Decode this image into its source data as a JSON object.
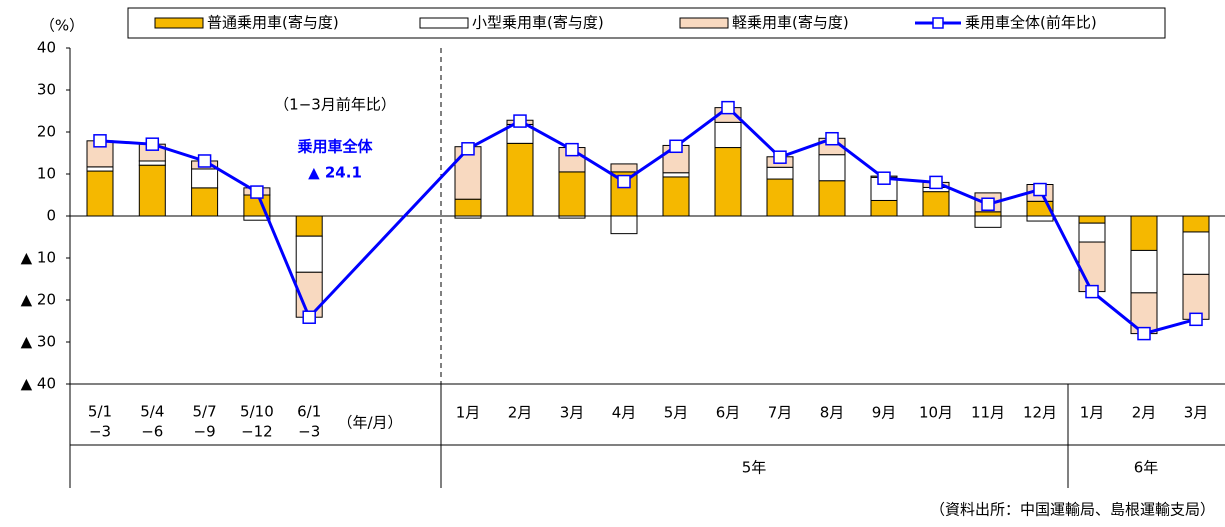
{
  "chart_data": {
    "type": "bar",
    "y_unit": "（%）",
    "x_unit_label": "（年/月）",
    "categories": [
      [
        "5/1",
        "−3"
      ],
      [
        "5/4",
        "−6"
      ],
      [
        "5/7",
        "−9"
      ],
      [
        "5/10",
        "−12"
      ],
      [
        "6/1",
        "−3"
      ],
      "1月",
      "2月",
      "3月",
      "4月",
      "5月",
      "6月",
      "7月",
      "8月",
      "9月",
      "10月",
      "11月",
      "12月",
      "1月",
      "2月",
      "3月"
    ],
    "groups": [
      "5年",
      "6年"
    ],
    "series": [
      {
        "name": "普通乗用車(寄与度)",
        "color": "#f5b800",
        "values": [
          10.7,
          12.1,
          6.7,
          5.0,
          -4.8,
          4.0,
          17.3,
          10.5,
          10.5,
          9.3,
          16.3,
          8.8,
          8.4,
          3.7,
          5.8,
          1.0,
          3.5,
          -1.7,
          -8.2,
          -3.8
        ]
      },
      {
        "name": "小型乗用車(寄与度)",
        "color": "#ffffff",
        "values": [
          1.0,
          1.0,
          4.5,
          -1.0,
          -8.6,
          -0.5,
          4.5,
          -0.5,
          -4.2,
          1.0,
          6.0,
          2.8,
          6.2,
          5.5,
          1.0,
          -2.7,
          -1.2,
          -4.5,
          -10.1,
          -10.1
        ]
      },
      {
        "name": "軽乗用車(寄与度)",
        "color": "#f8d9c0",
        "values": [
          6.2,
          4.0,
          1.9,
          1.7,
          -10.7,
          12.5,
          1.0,
          5.8,
          1.9,
          6.5,
          3.5,
          2.5,
          3.9,
          0.3,
          1.2,
          4.5,
          4.0,
          -11.8,
          -9.7,
          -10.7
        ]
      },
      {
        "name": "乗用車全体(前年比)",
        "color": "#0000ff",
        "type": "line",
        "values": [
          17.9,
          17.1,
          13.1,
          5.7,
          -24.1,
          16.0,
          22.6,
          15.8,
          8.2,
          16.6,
          25.8,
          14.0,
          18.4,
          9.0,
          8.0,
          2.8,
          6.3,
          -18.0,
          -28.0,
          -24.6
        ]
      }
    ],
    "ylim": [
      -40,
      40
    ],
    "yticks": [
      {
        "value": -40,
        "label": "▲ 40"
      },
      {
        "value": -30,
        "label": "▲ 30"
      },
      {
        "value": -20,
        "label": "▲ 20"
      },
      {
        "value": -10,
        "label": "▲ 10"
      },
      0,
      10,
      20,
      30,
      40
    ],
    "annotations": [
      "（1−3月前年比）",
      "乗用車全体",
      "▲ 24.1"
    ],
    "source": "（資料出所：中国運輸局、島根運輸支局）"
  }
}
